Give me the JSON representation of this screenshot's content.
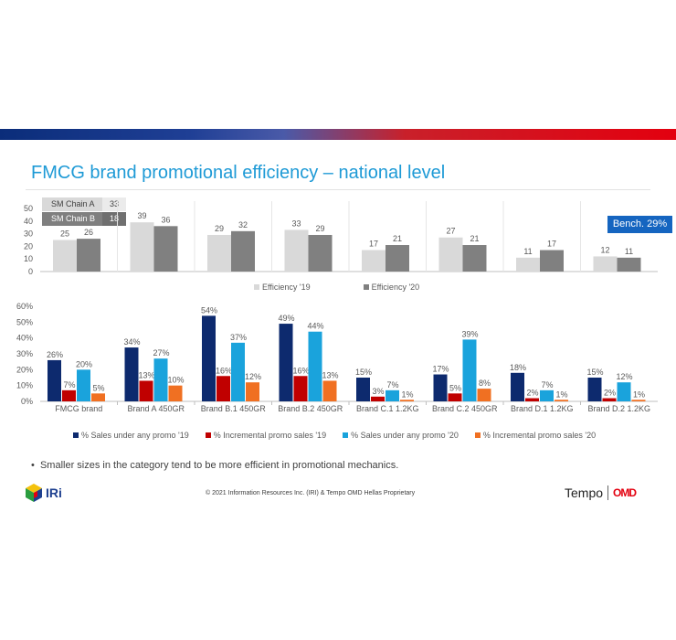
{
  "title": "FMCG brand promotional efficiency – national level",
  "chains": [
    {
      "name": "SM Chain A",
      "value": "33"
    },
    {
      "name": "SM Chain B",
      "value": "18"
    }
  ],
  "benchmark": "Bench. 29%",
  "bullet": "Smaller sizes in the category tend to be more efficient in promotional mechanics.",
  "footer": "© 2021 Information Resources Inc. (IRI) & Tempo OMD Hellas Proprietary",
  "logos": {
    "iri": "IRi",
    "tempo": "Tempo",
    "omd": "OMD"
  },
  "colors": {
    "eff19": "#d9d9d9",
    "eff20": "#808080",
    "promo19": "#0d2a6e",
    "incr19": "#c00000",
    "promo20": "#1aa3dc",
    "incr20": "#f07022",
    "benchmark": "#1565c0",
    "title": "#1e9ad6"
  },
  "chart_data": [
    {
      "type": "bar",
      "categories": [
        "",
        "",
        "",
        "",
        "",
        "",
        "",
        ""
      ],
      "series": [
        {
          "name": "Efficiency '19",
          "values": [
            25,
            39,
            29,
            33,
            17,
            27,
            11,
            12
          ]
        },
        {
          "name": "Efficiency '20",
          "values": [
            26,
            36,
            32,
            29,
            21,
            21,
            17,
            11
          ]
        }
      ],
      "ylim": [
        0,
        50
      ],
      "yticks": [
        "0",
        "10",
        "20",
        "30",
        "40",
        "50"
      ],
      "legend_position": "bottom"
    },
    {
      "type": "bar",
      "categories": [
        "FMCG brand",
        "Brand A  450GR",
        "Brand B.1  450GR",
        "Brand B.2  450GR",
        "Brand C.1  1.2KG",
        "Brand C.2  450GR",
        "Brand D.1  1.2KG",
        "Brand D.2  1.2KG"
      ],
      "series": [
        {
          "name": "% Sales under any promo '19",
          "values": [
            26,
            34,
            54,
            49,
            15,
            17,
            18,
            15
          ],
          "labels": [
            "26%",
            "34%",
            "54%",
            "49%",
            "15%",
            "17%",
            "18%",
            "15%"
          ]
        },
        {
          "name": "% Incremental promo sales '19",
          "values": [
            7,
            13,
            16,
            16,
            3,
            5,
            2,
            2
          ],
          "labels": [
            "7%",
            "13%",
            "16%",
            "16%",
            "3%",
            "5%",
            "2%",
            "2%"
          ]
        },
        {
          "name": "% Sales under any promo '20",
          "values": [
            20,
            27,
            37,
            44,
            7,
            39,
            7,
            12
          ],
          "labels": [
            "20%",
            "27%",
            "37%",
            "44%",
            "7%",
            "39%",
            "7%",
            "12%"
          ]
        },
        {
          "name": "% Incremental promo sales '20",
          "values": [
            5,
            10,
            12,
            13,
            1,
            8,
            1,
            1
          ],
          "labels": [
            "5%",
            "10%",
            "12%",
            "13%",
            "1%",
            "8%",
            "1%",
            "1%"
          ]
        }
      ],
      "ylim": [
        0,
        60
      ],
      "yticks": [
        "0%",
        "10%",
        "20%",
        "30%",
        "40%",
        "50%",
        "60%"
      ],
      "legend_position": "bottom"
    }
  ]
}
